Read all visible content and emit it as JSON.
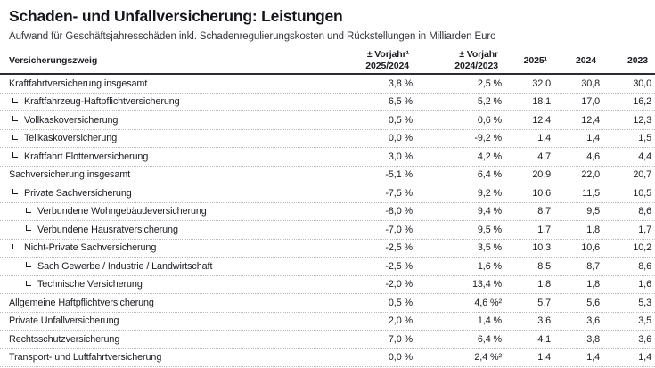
{
  "colors": {
    "background": "#ffffff",
    "text": "#1b1b22",
    "header_rule": "#2b2b31",
    "row_divider_dotted": "#b9b9b9"
  },
  "chart_data": {
    "type": "table",
    "title": "Schaden- und Unfallversicherung: Leistungen",
    "subtitle": "Aufwand für Geschäftsjahresschäden inkl. Schadenregulierungskosten und Rückstellungen in Milliarden Euro",
    "unit": "Milliarden Euro",
    "columns": {
      "label": "Versicherungszweig",
      "pct1": {
        "line1": "± Vorjahr¹",
        "line2": "2025/2024"
      },
      "pct2": {
        "line1": "± Vorjahr",
        "line2": "2024/2023"
      },
      "y2025": "2025¹",
      "y2024": "2024",
      "y2023": "2023"
    },
    "rows": [
      {
        "name": "Kraftfahrtversicherung insgesamt",
        "indent": 0,
        "values": [
          "3,8 %",
          "2,5 %",
          "32,0",
          "30,8",
          "30,0"
        ]
      },
      {
        "name": "Kraftfahrzeug-Haftpflichtversicherung",
        "indent": 1,
        "values": [
          "6,5 %",
          "5,2 %",
          "18,1",
          "17,0",
          "16,2"
        ]
      },
      {
        "name": "Vollkaskoversicherung",
        "indent": 1,
        "values": [
          "0,5 %",
          "0,6 %",
          "12,4",
          "12,4",
          "12,3"
        ]
      },
      {
        "name": "Teilkaskoversicherung",
        "indent": 1,
        "values": [
          "0,0 %",
          "-9,2 %",
          "1,4",
          "1,4",
          "1,5"
        ]
      },
      {
        "name": "Kraftfahrt Flottenversicherung",
        "indent": 1,
        "values": [
          "3,0 %",
          "4,2 %",
          "4,7",
          "4,6",
          "4,4"
        ]
      },
      {
        "name": "Sachversicherung insgesamt",
        "indent": 0,
        "values": [
          "-5,1 %",
          "6,4 %",
          "20,9",
          "22,0",
          "20,7"
        ]
      },
      {
        "name": "Private Sachversicherung",
        "indent": 1,
        "values": [
          "-7,5 %",
          "9,2 %",
          "10,6",
          "11,5",
          "10,5"
        ]
      },
      {
        "name": "Verbundene Wohngebäudeversicherung",
        "indent": 2,
        "values": [
          "-8,0 %",
          "9,4 %",
          "8,7",
          "9,5",
          "8,6"
        ]
      },
      {
        "name": "Verbundene Hausratversicherung",
        "indent": 2,
        "values": [
          "-7,0 %",
          "9,5 %",
          "1,7",
          "1,8",
          "1,7"
        ]
      },
      {
        "name": "Nicht-Private Sachversicherung",
        "indent": 1,
        "values": [
          "-2,5 %",
          "3,5 %",
          "10,3",
          "10,6",
          "10,2"
        ]
      },
      {
        "name": "Sach Gewerbe / Industrie / Landwirtschaft",
        "indent": 2,
        "values": [
          "-2,5 %",
          "1,6 %",
          "8,5",
          "8,7",
          "8,6"
        ]
      },
      {
        "name": "Technische Versicherung",
        "indent": 2,
        "values": [
          "-2,0 %",
          "13,4 %",
          "1,8",
          "1,8",
          "1,6"
        ]
      },
      {
        "name": "Allgemeine Haftpflichtversicherung",
        "indent": 0,
        "values": [
          "0,5 %",
          "4,6 %²",
          "5,7",
          "5,6",
          "5,3"
        ]
      },
      {
        "name": "Private Unfallversicherung",
        "indent": 0,
        "values": [
          "2,0 %",
          "1,4 %",
          "3,6",
          "3,6",
          "3,5"
        ]
      },
      {
        "name": "Rechtsschutzversicherung",
        "indent": 0,
        "values": [
          "7,0 %",
          "6,4 %",
          "4,1",
          "3,8",
          "3,6"
        ]
      },
      {
        "name": "Transport- und Luftfahrtversicherung",
        "indent": 0,
        "values": [
          "0,0 %",
          "2,4 %²",
          "1,4",
          "1,4",
          "1,4"
        ]
      }
    ]
  }
}
